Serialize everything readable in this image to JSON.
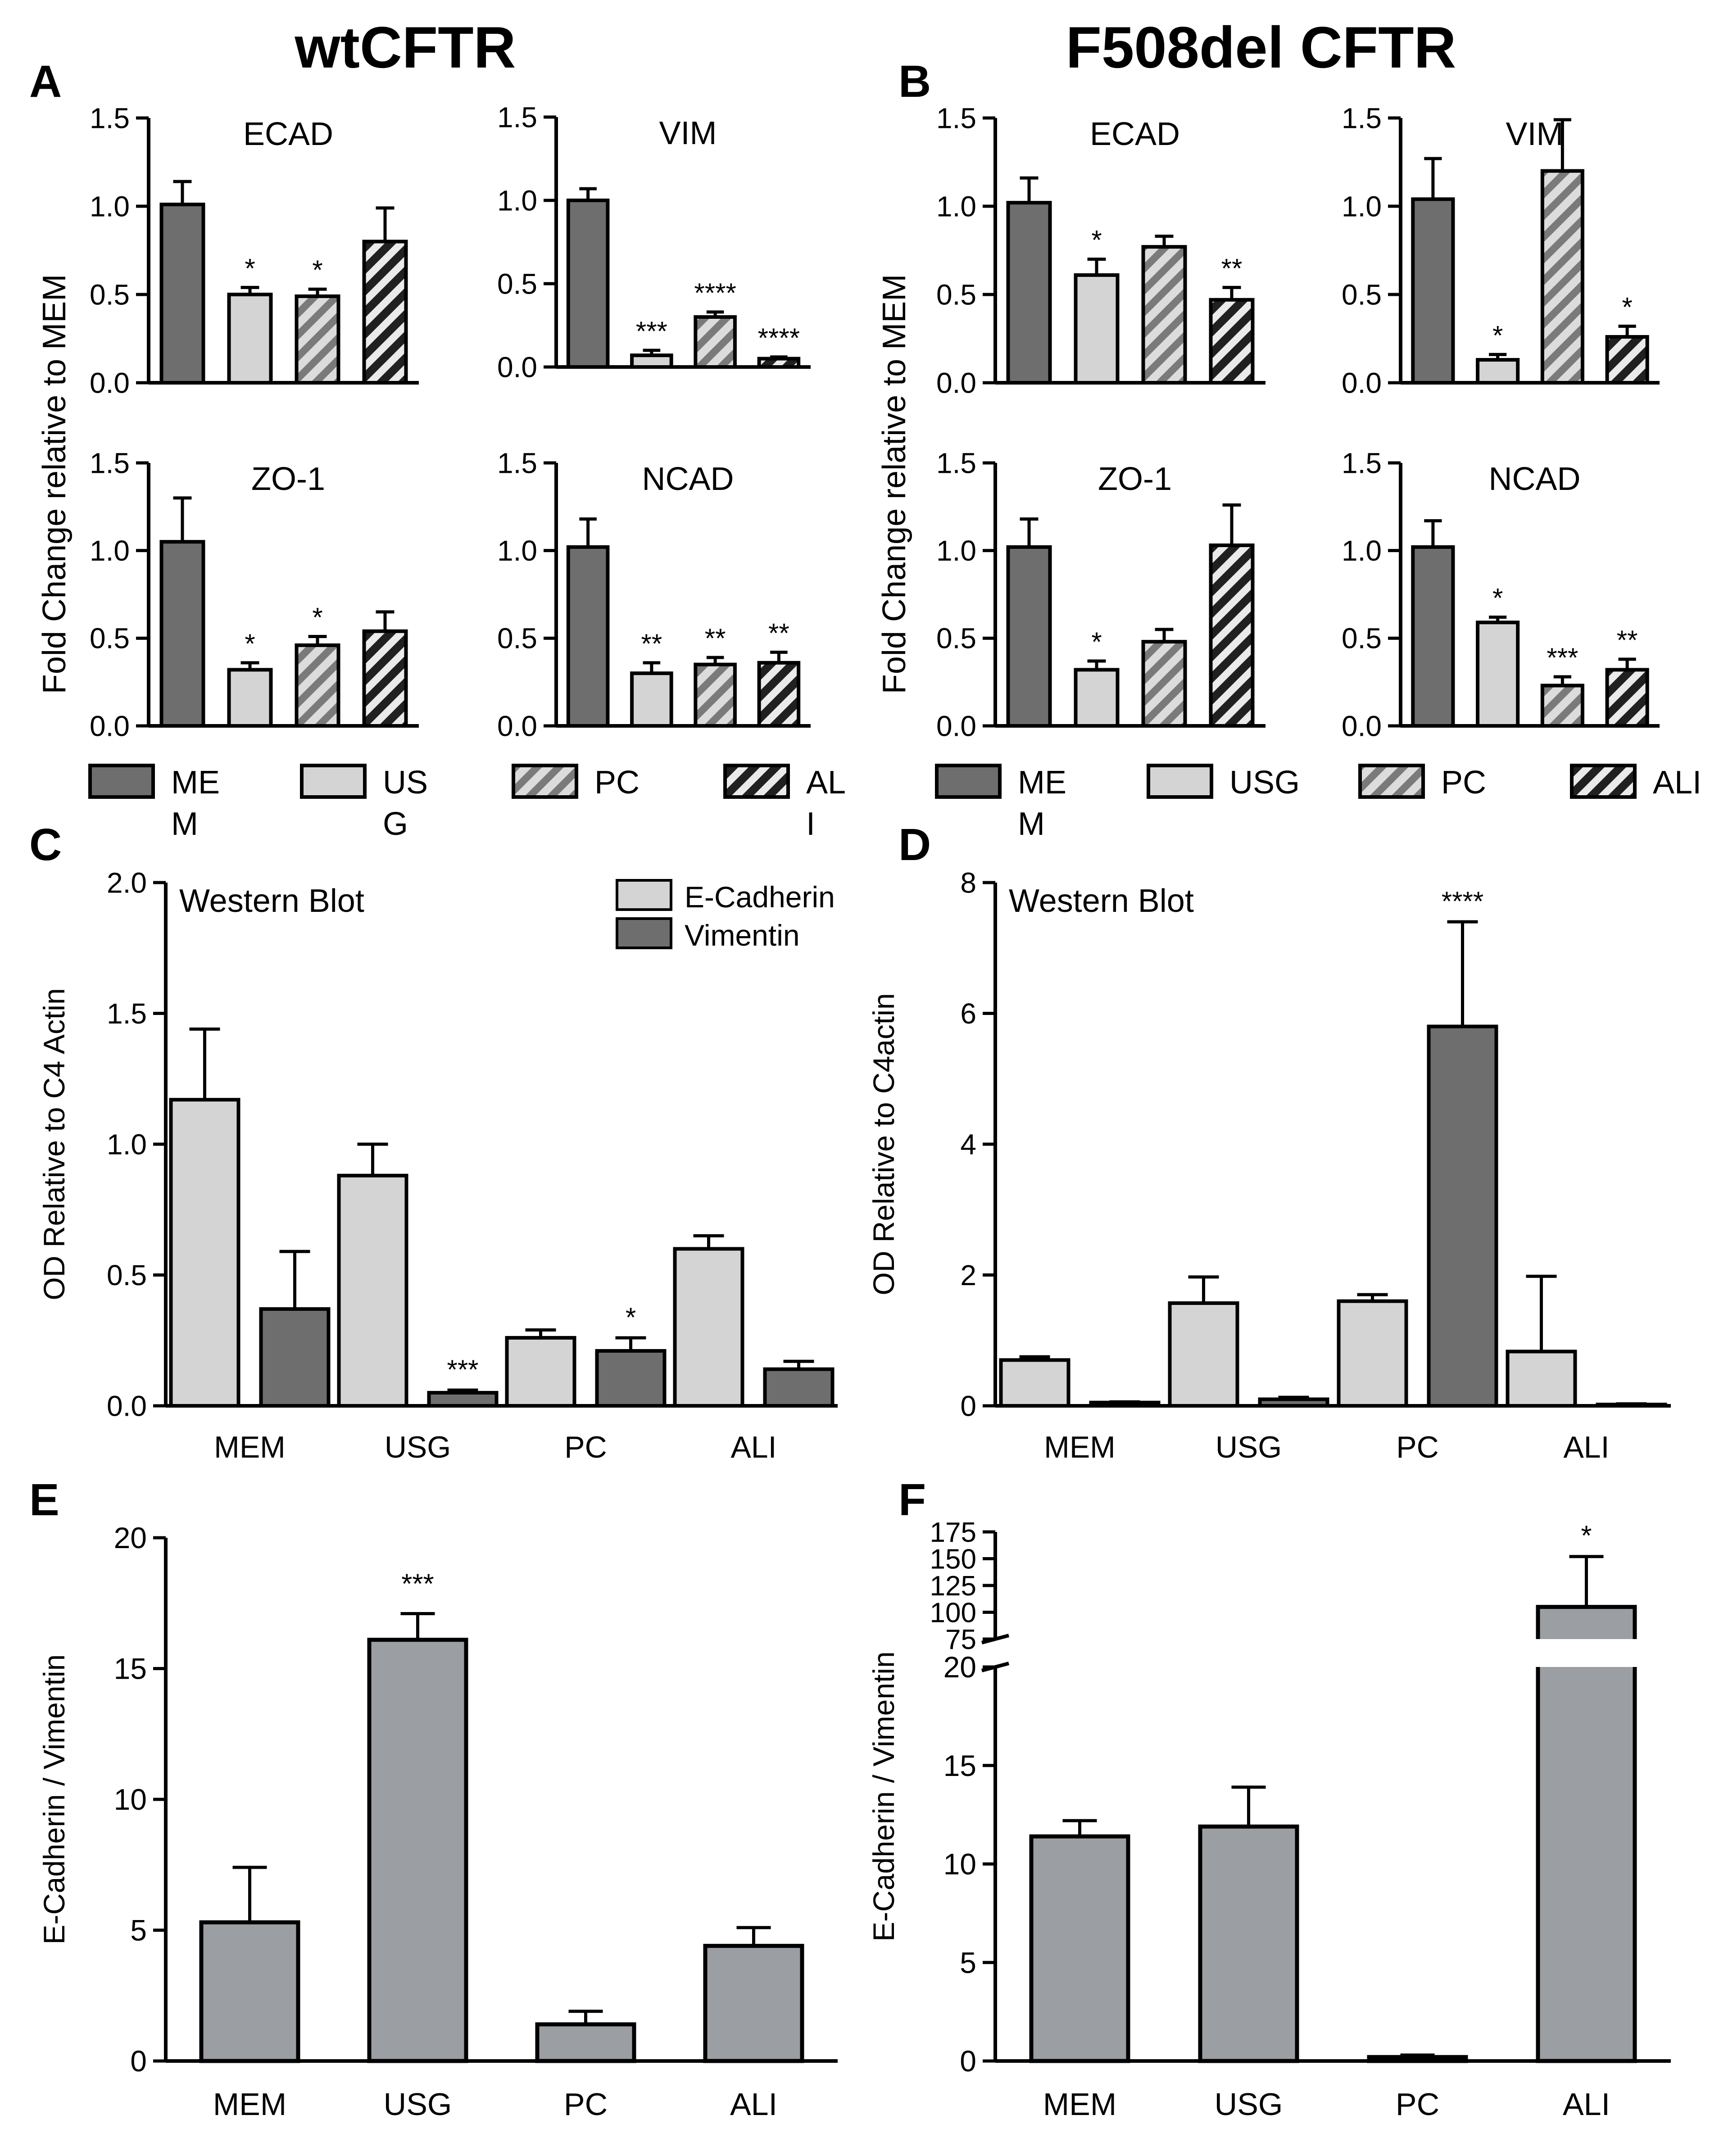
{
  "figure": {
    "col_titles": [
      "wtCFTR",
      "F508del CFTR"
    ],
    "panel_letters": [
      "A",
      "B",
      "C",
      "D",
      "E",
      "F"
    ],
    "qpcr_ylabel": "Fold Change relative to MEM",
    "legend_qpcr_A": [
      "ME\nM",
      "US\nG",
      "PC",
      "AL\nI"
    ],
    "legend_qpcr_B": [
      "ME\nM",
      "USG",
      "PC",
      "ALI"
    ]
  },
  "colors": {
    "mem": "#6e6e6e",
    "usg": "#d4d4d4",
    "vim": "#6e6e6e",
    "ecad": "#d4d4d4",
    "ratio": "#9b9ea2"
  },
  "chart_data": [
    {
      "id": "A-ECAD",
      "panel": "A",
      "type": "bar",
      "title": "ECAD",
      "categories": [
        "MEM",
        "USG",
        "PC",
        "ALI"
      ],
      "values": [
        1.01,
        0.5,
        0.49,
        0.8
      ],
      "errors": [
        0.13,
        0.04,
        0.04,
        0.19
      ],
      "sig": [
        "",
        "*",
        "*",
        ""
      ],
      "ylim": [
        0,
        1.5
      ],
      "yticks": [
        "0.0",
        "0.5",
        "1.0",
        "1.5"
      ]
    },
    {
      "id": "A-VIM",
      "panel": "A",
      "type": "bar",
      "title": "VIM",
      "categories": [
        "MEM",
        "USG",
        "PC",
        "ALI"
      ],
      "values": [
        1.0,
        0.07,
        0.3,
        0.05
      ],
      "errors": [
        0.07,
        0.03,
        0.03,
        0.01
      ],
      "sig": [
        "",
        "***",
        "****",
        "****"
      ],
      "ylim": [
        0,
        1.5
      ],
      "yticks": [
        "0.0",
        "0.5",
        "1.0",
        "1.5"
      ]
    },
    {
      "id": "A-ZO1",
      "panel": "A",
      "type": "bar",
      "title": "ZO-1",
      "categories": [
        "MEM",
        "USG",
        "PC",
        "ALI"
      ],
      "values": [
        1.05,
        0.32,
        0.46,
        0.54
      ],
      "errors": [
        0.25,
        0.04,
        0.05,
        0.11
      ],
      "sig": [
        "",
        "*",
        "*",
        ""
      ],
      "ylim": [
        0,
        1.5
      ],
      "yticks": [
        "0.0",
        "0.5",
        "1.0",
        "1.5"
      ]
    },
    {
      "id": "A-NCAD",
      "panel": "A",
      "type": "bar",
      "title": "NCAD",
      "categories": [
        "MEM",
        "USG",
        "PC",
        "ALI"
      ],
      "values": [
        1.02,
        0.3,
        0.35,
        0.36
      ],
      "errors": [
        0.16,
        0.06,
        0.04,
        0.06
      ],
      "sig": [
        "",
        "**",
        "**",
        "**"
      ],
      "ylim": [
        0,
        1.5
      ],
      "yticks": [
        "0.0",
        "0.5",
        "1.0",
        "1.5"
      ]
    },
    {
      "id": "B-ECAD",
      "panel": "B",
      "type": "bar",
      "title": "ECAD",
      "categories": [
        "MEM",
        "USG",
        "PC",
        "ALI"
      ],
      "values": [
        1.02,
        0.61,
        0.77,
        0.47
      ],
      "errors": [
        0.14,
        0.09,
        0.06,
        0.07
      ],
      "sig": [
        "",
        "*",
        "",
        "**"
      ],
      "ylim": [
        0,
        1.5
      ],
      "yticks": [
        "0.0",
        "0.5",
        "1.0",
        "1.5"
      ]
    },
    {
      "id": "B-VIM",
      "panel": "B",
      "type": "bar",
      "title": "VIM",
      "categories": [
        "MEM",
        "USG",
        "PC",
        "ALI"
      ],
      "values": [
        1.04,
        0.13,
        1.2,
        0.26
      ],
      "errors": [
        0.23,
        0.03,
        0.29,
        0.06
      ],
      "sig": [
        "",
        "*",
        "",
        "*"
      ],
      "ylim": [
        0,
        1.5
      ],
      "yticks": [
        "0.0",
        "0.5",
        "1.0",
        "1.5"
      ]
    },
    {
      "id": "B-ZO1",
      "panel": "B",
      "type": "bar",
      "title": "ZO-1",
      "categories": [
        "MEM",
        "USG",
        "PC",
        "ALI"
      ],
      "values": [
        1.02,
        0.32,
        0.48,
        1.03
      ],
      "errors": [
        0.16,
        0.05,
        0.07,
        0.23
      ],
      "sig": [
        "",
        "*",
        "",
        ""
      ],
      "ylim": [
        0,
        1.5
      ],
      "yticks": [
        "0.0",
        "0.5",
        "1.0",
        "1.5"
      ]
    },
    {
      "id": "B-NCAD",
      "panel": "B",
      "type": "bar",
      "title": "NCAD",
      "categories": [
        "MEM",
        "USG",
        "PC",
        "ALI"
      ],
      "values": [
        1.02,
        0.59,
        0.23,
        0.32
      ],
      "errors": [
        0.15,
        0.03,
        0.05,
        0.06
      ],
      "sig": [
        "",
        "*",
        "***",
        "**"
      ],
      "ylim": [
        0,
        1.5
      ],
      "yticks": [
        "0.0",
        "0.5",
        "1.0",
        "1.5"
      ]
    },
    {
      "id": "C",
      "panel": "C",
      "type": "bar",
      "title": "Western Blot",
      "ylabel": "OD Relative to C4 Actin",
      "categories": [
        "MEM",
        "USG",
        "PC",
        "ALI"
      ],
      "ylim": [
        0,
        2.0
      ],
      "yticks": [
        "0.0",
        "0.5",
        "1.0",
        "1.5",
        "2.0"
      ],
      "series": [
        {
          "name": "E-Cadherin",
          "values": [
            1.17,
            0.88,
            0.26,
            0.6
          ],
          "errors": [
            0.27,
            0.12,
            0.03,
            0.05
          ],
          "sig": [
            "",
            "",
            "",
            ""
          ]
        },
        {
          "name": "Vimentin",
          "values": [
            0.37,
            0.05,
            0.21,
            0.14
          ],
          "errors": [
            0.22,
            0.01,
            0.05,
            0.03
          ],
          "sig": [
            "",
            "***",
            "*",
            ""
          ]
        }
      ]
    },
    {
      "id": "D",
      "panel": "D",
      "type": "bar",
      "title": "Western Blot",
      "ylabel": "OD Relative to C4actin",
      "categories": [
        "MEM",
        "USG",
        "PC",
        "ALI"
      ],
      "ylim": [
        0,
        8
      ],
      "yticks": [
        "0",
        "2",
        "4",
        "6",
        "8"
      ],
      "series": [
        {
          "name": "E-Cadherin",
          "values": [
            0.7,
            1.57,
            1.6,
            0.83
          ],
          "errors": [
            0.05,
            0.4,
            0.1,
            1.15
          ],
          "sig": [
            "",
            "",
            "",
            ""
          ]
        },
        {
          "name": "Vimentin",
          "values": [
            0.05,
            0.1,
            5.8,
            0.02
          ],
          "errors": [
            0.01,
            0.03,
            1.6,
            0.01
          ],
          "sig": [
            "",
            "",
            "****",
            ""
          ]
        }
      ]
    },
    {
      "id": "E",
      "panel": "E",
      "type": "bar",
      "ylabel": "E-Cadherin / Vimentin",
      "categories": [
        "MEM",
        "USG",
        "PC",
        "ALI"
      ],
      "values": [
        5.3,
        16.1,
        1.4,
        4.4
      ],
      "errors": [
        2.1,
        1.0,
        0.5,
        0.7
      ],
      "sig": [
        "",
        "***",
        "",
        ""
      ],
      "ylim": [
        0,
        20
      ],
      "yticks": [
        "0",
        "5",
        "10",
        "15",
        "20"
      ]
    },
    {
      "id": "F",
      "panel": "F",
      "type": "bar",
      "ylabel": "E-Cadherin / Vimentin",
      "axis_break": [
        20,
        75
      ],
      "categories": [
        "MEM",
        "USG",
        "PC",
        "ALI"
      ],
      "values": [
        11.4,
        11.9,
        0.2,
        105
      ],
      "errors": [
        0.8,
        2.0,
        0.1,
        47
      ],
      "sig": [
        "",
        "",
        "",
        "*"
      ],
      "ylim": [
        0,
        175
      ],
      "yticks_lower": [
        "0",
        "5",
        "10",
        "15",
        "20"
      ],
      "yticks_upper": [
        "75",
        "100",
        "125",
        "150",
        "175"
      ]
    }
  ]
}
